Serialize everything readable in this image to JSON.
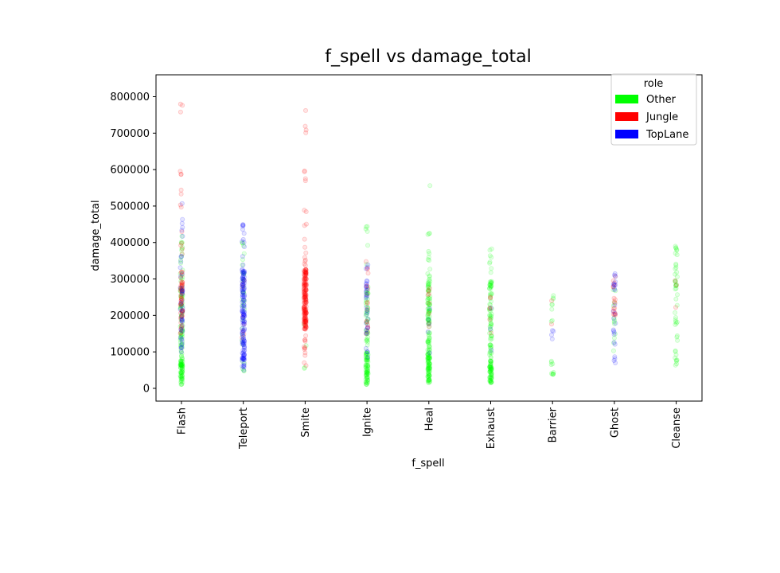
{
  "chart_data": {
    "type": "scatter",
    "title": "f_spell vs damage_total",
    "xlabel": "f_spell",
    "ylabel": "damage_total",
    "categories": [
      "Flash",
      "Teleport",
      "Smite",
      "Ignite",
      "Heal",
      "Exhaust",
      "Barrier",
      "Ghost",
      "Cleanse"
    ],
    "ylim": [
      -35000,
      860000
    ],
    "yticks": [
      0,
      100000,
      200000,
      300000,
      400000,
      500000,
      600000,
      700000,
      800000
    ],
    "ytick_labels": [
      "0",
      "100000",
      "200000",
      "300000",
      "400000",
      "500000",
      "600000",
      "700000",
      "800000"
    ],
    "grid": false,
    "legend": {
      "title": "role",
      "placement": "top-right",
      "entries": [
        "Other",
        "Jungle",
        "TopLane"
      ]
    },
    "series": [
      {
        "name": "Other",
        "color": "#00ff00",
        "ranges": {
          "Flash": [
            [
              10000,
              90000,
              70
            ],
            [
              90000,
              320000,
              70
            ],
            [
              320000,
              420000,
              12
            ]
          ],
          "Teleport": [
            [
              40000,
              320000,
              25
            ],
            [
              320000,
              440000,
              6
            ]
          ],
          "Smite": [
            [
              40000,
              200000,
              4
            ]
          ],
          "Ignite": [
            [
              10000,
              100000,
              70
            ],
            [
              100000,
              280000,
              40
            ],
            [
              280000,
              450000,
              6
            ]
          ],
          "Heal": [
            [
              15000,
              90000,
              70
            ],
            [
              90000,
              300000,
              90
            ],
            [
              300000,
              430000,
              12
            ],
            [
              555000,
              560000,
              1
            ]
          ],
          "Exhaust": [
            [
              15000,
              80000,
              60
            ],
            [
              80000,
              300000,
              70
            ],
            [
              300000,
              395000,
              8
            ]
          ],
          "Barrier": [
            [
              30000,
              270000,
              18
            ]
          ],
          "Ghost": [
            [
              100000,
              300000,
              12
            ]
          ],
          "Cleanse": [
            [
              35000,
              390000,
              45
            ]
          ]
        }
      },
      {
        "name": "Jungle",
        "color": "#ff0000",
        "ranges": {
          "Flash": [
            [
              150000,
              320000,
              55
            ],
            [
              320000,
              600000,
              12
            ],
            [
              745000,
              825000,
              3
            ]
          ],
          "Teleport": [
            [
              120000,
              300000,
              8
            ]
          ],
          "Smite": [
            [
              160000,
              330000,
              170
            ],
            [
              60000,
              160000,
              12
            ],
            [
              330000,
              600000,
              16
            ],
            [
              690000,
              775000,
              4
            ]
          ],
          "Ignite": [
            [
              150000,
              350000,
              18
            ]
          ],
          "Heal": [
            [
              150000,
              300000,
              8
            ]
          ],
          "Exhaust": [
            [
              150000,
              280000,
              6
            ]
          ],
          "Barrier": [
            [
              150000,
              250000,
              2
            ]
          ],
          "Ghost": [
            [
              190000,
              310000,
              18
            ]
          ],
          "Cleanse": [
            [
              180000,
              300000,
              3
            ]
          ]
        }
      },
      {
        "name": "TopLane",
        "color": "#0000ff",
        "ranges": {
          "Flash": [
            [
              100000,
              320000,
              35
            ],
            [
              320000,
              510000,
              10
            ]
          ],
          "Teleport": [
            [
              60000,
              330000,
              140
            ],
            [
              330000,
              450000,
              12
            ],
            [
              25000,
              60000,
              3
            ]
          ],
          "Smite": [],
          "Ignite": [
            [
              80000,
              300000,
              28
            ],
            [
              300000,
              345000,
              3
            ]
          ],
          "Heal": [
            [
              80000,
              250000,
              5
            ]
          ],
          "Exhaust": [
            [
              100000,
              230000,
              3
            ]
          ],
          "Barrier": [
            [
              100000,
              170000,
              4
            ]
          ],
          "Ghost": [
            [
              60000,
              320000,
              25
            ]
          ],
          "Cleanse": []
        }
      }
    ]
  }
}
